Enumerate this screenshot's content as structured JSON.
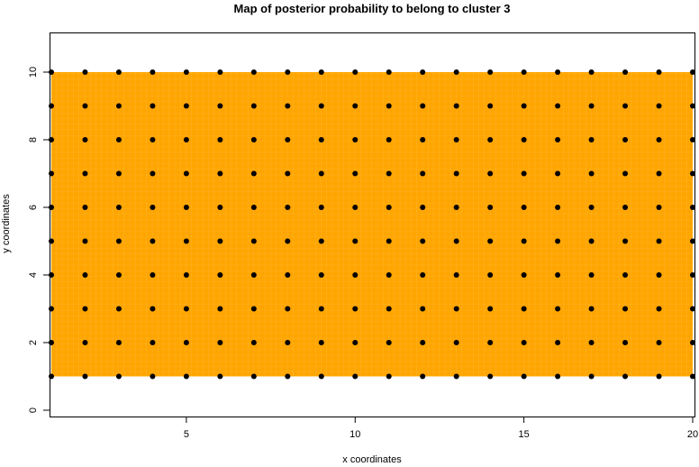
{
  "chart_data": {
    "type": "heatmap",
    "title": "Map of posterior probability to belong to cluster  3",
    "xlabel": "x coordinates",
    "ylabel": "y coordinates",
    "xlim": [
      1,
      20
    ],
    "ylim": [
      0,
      11
    ],
    "x_ticks": [
      5,
      10,
      15,
      20
    ],
    "y_ticks": [
      0,
      2,
      4,
      6,
      8,
      10
    ],
    "grid": false,
    "fill_region": {
      "x": [
        1,
        20
      ],
      "y": [
        1,
        10
      ],
      "color": "#FFA500"
    },
    "points": {
      "x": [
        1,
        2,
        3,
        4,
        5,
        6,
        7,
        8,
        9,
        10,
        11,
        12,
        13,
        14,
        15,
        16,
        17,
        18,
        19,
        20
      ],
      "y": [
        1,
        2,
        3,
        4,
        5,
        6,
        7,
        8,
        9,
        10
      ],
      "color": "#000000"
    }
  }
}
